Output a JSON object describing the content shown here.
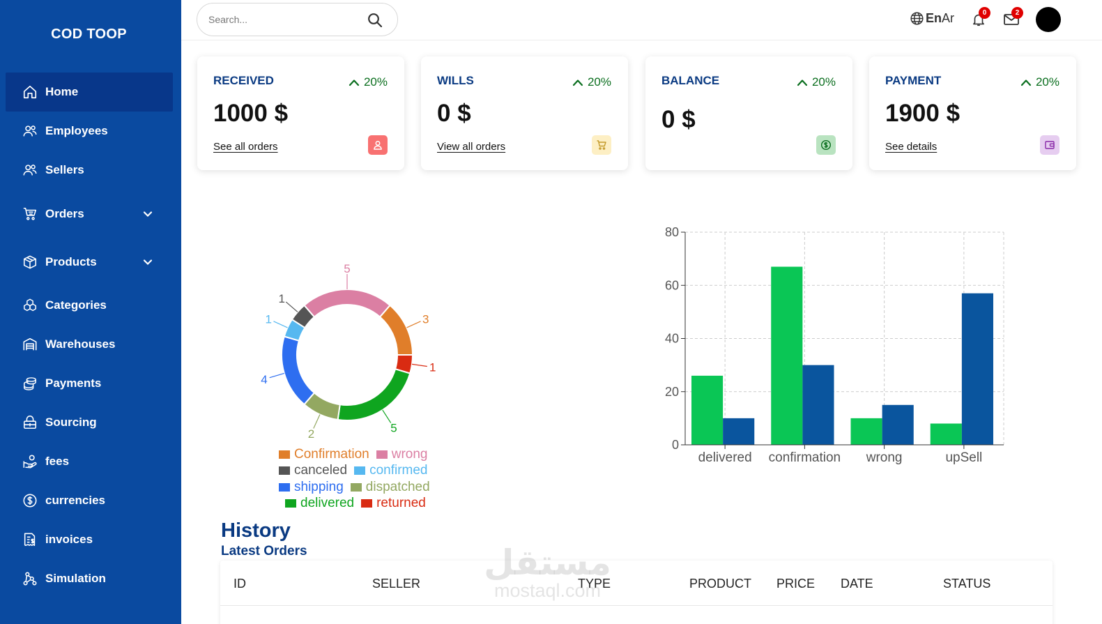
{
  "brand": "COD TOOP",
  "sidebar": {
    "items": [
      {
        "label": "Home",
        "icon": "home-icon",
        "active": true
      },
      {
        "label": "Employees",
        "icon": "users-icon"
      },
      {
        "label": "Sellers",
        "icon": "users-icon"
      },
      {
        "label": "Orders",
        "icon": "cart-icon",
        "expandable": true
      },
      {
        "label": "Products",
        "icon": "box-icon",
        "expandable": true
      },
      {
        "label": "Categories",
        "icon": "boxes-icon"
      },
      {
        "label": "Warehouses",
        "icon": "warehouse-icon"
      },
      {
        "label": "Payments",
        "icon": "coins-icon"
      },
      {
        "label": "Sourcing",
        "icon": "package-lock-icon"
      },
      {
        "label": "fees",
        "icon": "hand-coins-icon"
      },
      {
        "label": "currencies",
        "icon": "dollar-circle-icon"
      },
      {
        "label": "invoices",
        "icon": "invoice-icon"
      },
      {
        "label": "Simulation",
        "icon": "network-icon"
      }
    ]
  },
  "topbar": {
    "search_placeholder": "Search...",
    "lang_en": "En",
    "lang_ar": "Ar",
    "notifications_count": "0",
    "messages_count": "2"
  },
  "cards": [
    {
      "title": "RECEIVED",
      "trend": "20%",
      "value": "1000 $",
      "link": "See all orders",
      "icon": "user-icon",
      "icon_bg": "#f87171",
      "icon_color": "#ffffff"
    },
    {
      "title": "WILLS",
      "trend": "20%",
      "value": "0 $",
      "link": "View all orders",
      "icon": "cart-icon",
      "icon_bg": "#fdefc4",
      "icon_color": "#c49a2a"
    },
    {
      "title": "BALANCE",
      "trend": "20%",
      "value": "0 $",
      "link": "",
      "icon": "dollar-icon",
      "icon_bg": "#b9e3c0",
      "icon_color": "#0a6e1e"
    },
    {
      "title": "PAYMENT",
      "trend": "20%",
      "value": "1900 $",
      "link": "See details",
      "icon": "wallet-icon",
      "icon_bg": "#e6cdf0",
      "icon_color": "#8a2aa8"
    }
  ],
  "chart_data": [
    {
      "type": "pie",
      "donut": true,
      "categories": [
        "wrong",
        "Confirmation",
        "returned",
        "delivered",
        "dispatched",
        "shipping",
        "confirmed",
        "canceled"
      ],
      "values": [
        5,
        3,
        1,
        5,
        2,
        4,
        1,
        1
      ],
      "colors": [
        "#db7fa3",
        "#e07e2a",
        "#d92b12",
        "#0fa51f",
        "#93a861",
        "#2e6ef0",
        "#56b8f0",
        "#555555"
      ],
      "legend": {
        "placement": "bottom",
        "entries": [
          {
            "label": "Confirmation",
            "color": "#e07e2a"
          },
          {
            "label": "wrong",
            "color": "#db7fa3"
          },
          {
            "label": "canceled",
            "color": "#555555"
          },
          {
            "label": "confirmed",
            "color": "#56b8f0"
          },
          {
            "label": "shipping",
            "color": "#2e6ef0"
          },
          {
            "label": "dispatched",
            "color": "#93a861"
          },
          {
            "label": "delivered",
            "color": "#0fa51f"
          },
          {
            "label": "returned",
            "color": "#d92b12"
          }
        ]
      }
    },
    {
      "type": "bar",
      "categories": [
        "delivered",
        "confirmation",
        "wrong",
        "upSell"
      ],
      "series": [
        {
          "values": [
            26,
            67,
            10,
            8
          ],
          "color": "#0ac655"
        },
        {
          "values": [
            10,
            30,
            15,
            57
          ],
          "color": "#0a559e"
        }
      ],
      "ylim": [
        0,
        80
      ],
      "yticks": [
        0,
        20,
        40,
        60,
        80
      ],
      "grid": true
    }
  ],
  "history": {
    "title": "History",
    "subtitle": "Latest Orders",
    "columns": [
      "ID",
      "SELLER",
      "TYPE",
      "PRODUCT",
      "PRICE",
      "DATE",
      "STATUS"
    ]
  },
  "watermark": {
    "arabic": "مستقل",
    "latin": "mostaql.com"
  }
}
